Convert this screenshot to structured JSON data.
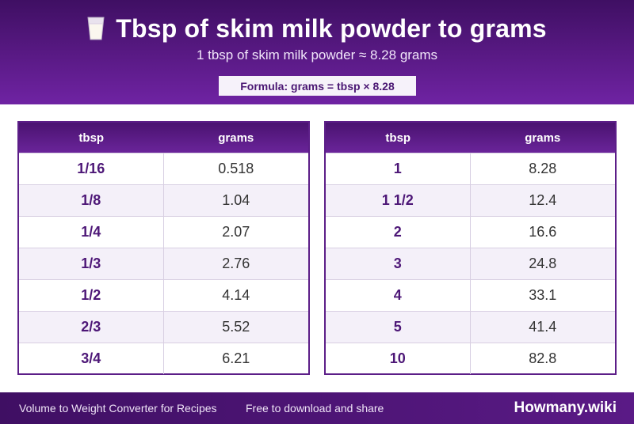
{
  "header": {
    "icon": "milk-glass-icon",
    "title": "Tbsp of skim milk powder to grams",
    "subtitle": "1 tbsp of skim milk powder ≈ 8.28 grams",
    "formula": "Formula: grams = tbsp × 8.28"
  },
  "tables": [
    {
      "columns": [
        "tbsp",
        "grams"
      ],
      "rows": [
        {
          "tbsp": "1/16",
          "grams": "0.518"
        },
        {
          "tbsp": "1/8",
          "grams": "1.04"
        },
        {
          "tbsp": "1/4",
          "grams": "2.07"
        },
        {
          "tbsp": "1/3",
          "grams": "2.76"
        },
        {
          "tbsp": "1/2",
          "grams": "4.14"
        },
        {
          "tbsp": "2/3",
          "grams": "5.52"
        },
        {
          "tbsp": "3/4",
          "grams": "6.21"
        }
      ]
    },
    {
      "columns": [
        "tbsp",
        "grams"
      ],
      "rows": [
        {
          "tbsp": "1",
          "grams": "8.28"
        },
        {
          "tbsp": "1 1/2",
          "grams": "12.4"
        },
        {
          "tbsp": "2",
          "grams": "16.6"
        },
        {
          "tbsp": "3",
          "grams": "24.8"
        },
        {
          "tbsp": "4",
          "grams": "33.1"
        },
        {
          "tbsp": "5",
          "grams": "41.4"
        },
        {
          "tbsp": "10",
          "grams": "82.8"
        }
      ]
    }
  ],
  "footer": {
    "left": "Volume to Weight Converter for Recipes",
    "middle": "Free to download and share",
    "brand": "Howmany.wiki"
  },
  "colors": {
    "primary": "#5a1a86",
    "dark": "#3f0f63",
    "row_alt": "#f4f0f9",
    "accent_text": "#4d1777"
  }
}
